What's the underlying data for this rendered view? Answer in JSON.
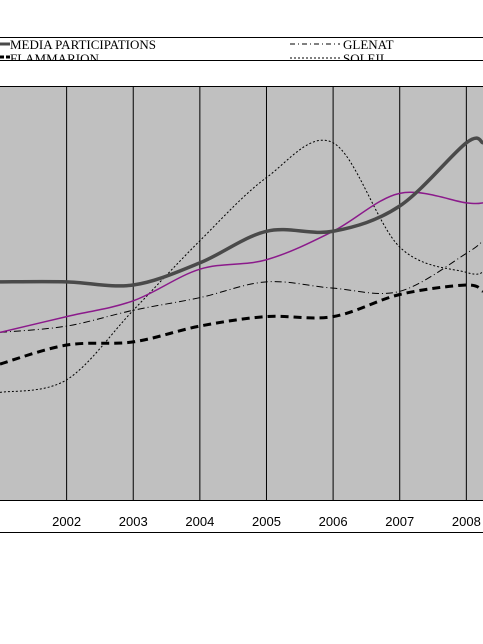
{
  "chart_data": {
    "type": "line",
    "x": [
      2001,
      2002,
      2003,
      2004,
      2005,
      2006,
      2007,
      2008,
      2008.25
    ],
    "tick_labels": [
      "2002",
      "2003",
      "2004",
      "2005",
      "2006",
      "2007",
      "2008"
    ],
    "grid": true,
    "legend_position": "top",
    "series": [
      {
        "name": "MEDIA PARTICIPATIONS",
        "color": "#4a4a4a",
        "style": "solid-thick",
        "values": [
          51,
          51,
          50,
          57,
          67,
          67,
          75,
          95,
          95
        ]
      },
      {
        "name": "FLAMMARION",
        "color": "#000000",
        "style": "dash-thick",
        "values": [
          25,
          31,
          32,
          37,
          40,
          40,
          47,
          50,
          48
        ]
      },
      {
        "name": "GLENAT",
        "color": "#000000",
        "style": "dashdot-thin",
        "values": [
          35,
          37,
          42,
          46,
          51,
          49,
          48,
          60,
          64
        ]
      },
      {
        "name": "SOLEIL",
        "color": "#000000",
        "style": "dotted-thin",
        "values": [
          16,
          20,
          42,
          64,
          84,
          95,
          62,
          54,
          54
        ]
      },
      {
        "name": "",
        "color": "#8b1a8b",
        "style": "solid-thin",
        "values": [
          35,
          40,
          45,
          55,
          58,
          67,
          79,
          76,
          76
        ]
      }
    ]
  }
}
